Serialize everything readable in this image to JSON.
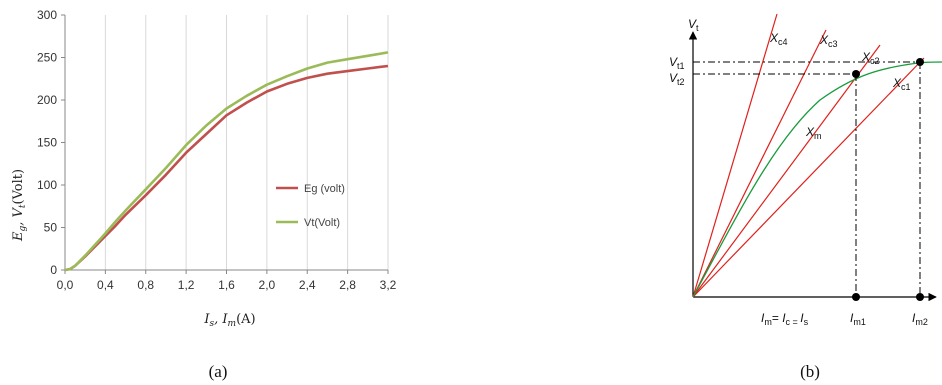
{
  "chart_data": [
    {
      "type": "line",
      "caption": "(a)",
      "ylabel": "E_g, V_t(Volt)",
      "xlabel": "I_s, I_m(A)",
      "xlim": [
        0,
        3.2
      ],
      "ylim": [
        0,
        300
      ],
      "xticks": [
        "0,0",
        "0,4",
        "0,8",
        "1,2",
        "1,6",
        "2,0",
        "2,4",
        "2,8",
        "3,2"
      ],
      "yticks": [
        "0",
        "50",
        "100",
        "150",
        "200",
        "250",
        "300"
      ],
      "grid": "vertical",
      "legend_position": "right",
      "series": [
        {
          "name": "Eg (volt)",
          "color": "#c0504d",
          "x": [
            0.0,
            0.05,
            0.1,
            0.2,
            0.3,
            0.4,
            0.5,
            0.6,
            0.8,
            1.0,
            1.2,
            1.4,
            1.6,
            1.8,
            2.0,
            2.2,
            2.4,
            2.6,
            2.8,
            3.0,
            3.2
          ],
          "y": [
            0,
            1,
            5,
            16,
            28,
            40,
            52,
            65,
            88,
            112,
            138,
            160,
            182,
            197,
            210,
            219,
            226,
            231,
            234,
            237,
            240
          ]
        },
        {
          "name": "Vt(Volt)",
          "color": "#9bbb59",
          "x": [
            0.0,
            0.05,
            0.1,
            0.2,
            0.3,
            0.4,
            0.5,
            0.6,
            0.8,
            1.0,
            1.2,
            1.4,
            1.6,
            1.8,
            2.0,
            2.2,
            2.4,
            2.6,
            2.8,
            3.0,
            3.2
          ],
          "y": [
            0,
            1,
            5,
            17,
            30,
            43,
            57,
            70,
            95,
            120,
            147,
            170,
            190,
            205,
            218,
            228,
            237,
            244,
            248,
            252,
            256
          ]
        }
      ]
    },
    {
      "type": "diagram",
      "caption": "(b)",
      "axis_y_label": "V_t",
      "axis_x_label": "I_m = I_c = I_s",
      "y_marks": [
        "V_t1",
        "V_t2"
      ],
      "x_marks": [
        "I_m1",
        "I_m2"
      ],
      "line_labels": [
        "X_c4",
        "X_c3",
        "X_c2",
        "X_c1",
        "X_m"
      ],
      "colors": {
        "lines": "#e0201c",
        "curve": "#1a9b3c",
        "axes": "#000000"
      }
    }
  ]
}
